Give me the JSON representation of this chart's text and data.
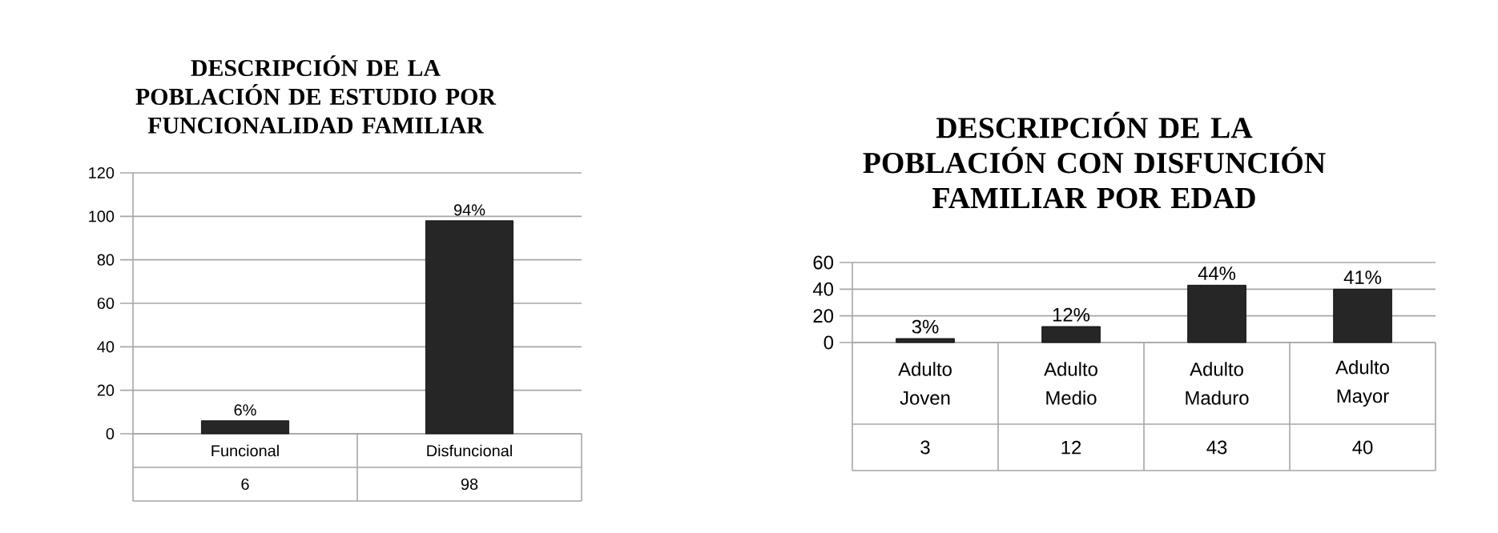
{
  "chart_data": [
    {
      "type": "bar",
      "title": "DESCRIPCIÓN DE LA POBLACIÓN DE ESTUDIO POR FUNCIONALIDAD FAMILIAR",
      "categories": [
        "Funcional",
        "Disfuncional"
      ],
      "values": [
        6,
        98
      ],
      "data_labels": true,
      "color": "#262626",
      "ylim": [
        0,
        120
      ],
      "yticks": [
        0,
        20,
        40,
        60,
        80,
        100,
        120
      ],
      "grid": "y",
      "annotations": [
        {
          "text": "6%",
          "x": "Funcional",
          "y": 6
        },
        {
          "text": "94%",
          "x": "Disfuncional",
          "y": 98
        }
      ]
    },
    {
      "type": "bar",
      "title": "DESCRIPCIÓN DE LA POBLACIÓN CON DISFUNCIÓN FAMILIAR POR EDAD",
      "categories": [
        "Adulto Joven",
        "Adulto Medio",
        "Adulto Maduro",
        "Adulto Mayor"
      ],
      "values": [
        3,
        12,
        43,
        40
      ],
      "data_labels": true,
      "color": "#262626",
      "ylim": [
        0,
        60
      ],
      "yticks": [
        0,
        20,
        40,
        60
      ],
      "grid": "y",
      "annotations": [
        {
          "text": "3%",
          "x": "Adulto Joven",
          "y": 3
        },
        {
          "text": "12%",
          "x": "Adulto Medio",
          "y": 12
        },
        {
          "text": "44%",
          "x": "Adulto Maduro",
          "y": 43
        },
        {
          "text": "41%",
          "x": "Adulto Mayor",
          "y": 40
        }
      ]
    }
  ]
}
